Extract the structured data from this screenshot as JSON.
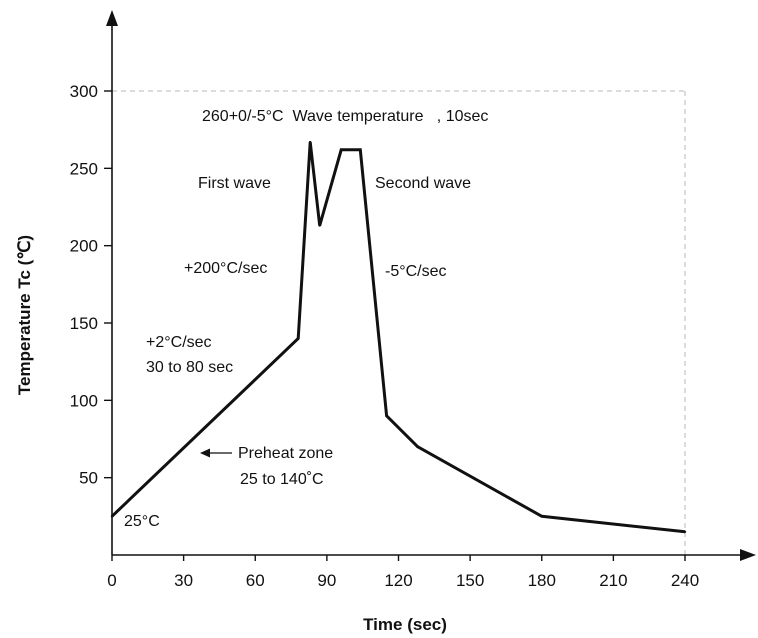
{
  "chart_data": {
    "type": "line",
    "title": "",
    "xlabel": "Time  (sec)",
    "ylabel": "Temperature Tc  (℃)",
    "xlim": [
      0,
      240
    ],
    "ylim": [
      0,
      300
    ],
    "x_ticks": [
      0,
      30,
      60,
      90,
      120,
      150,
      180,
      210,
      240
    ],
    "y_ticks": [
      50,
      100,
      150,
      200,
      250,
      300
    ],
    "grid": false,
    "series": [
      {
        "color": "#111111",
        "points": [
          {
            "x": 0,
            "y": 25
          },
          {
            "x": 78,
            "y": 140
          },
          {
            "x": 83,
            "y": 267
          },
          {
            "x": 87,
            "y": 213
          },
          {
            "x": 96,
            "y": 262
          },
          {
            "x": 104,
            "y": 262
          },
          {
            "x": 115,
            "y": 90
          },
          {
            "x": 128,
            "y": 70
          },
          {
            "x": 180,
            "y": 25
          },
          {
            "x": 240,
            "y": 15
          }
        ]
      }
    ],
    "annotations": [
      {
        "lines": [
          "260+0/-5°C  Wave temperature   , 10sec"
        ]
      },
      {
        "lines": [
          "First wave"
        ]
      },
      {
        "lines": [
          "Second wave"
        ]
      },
      {
        "lines": [
          "+200°C/sec"
        ]
      },
      {
        "lines": [
          "-5°C/sec"
        ]
      },
      {
        "lines": [
          "+2°C/sec",
          "30 to 80 sec"
        ]
      },
      {
        "lines": [
          "Preheat zone",
          "25 to 140˚C"
        ]
      },
      {
        "lines": [
          "25°C"
        ]
      }
    ]
  }
}
